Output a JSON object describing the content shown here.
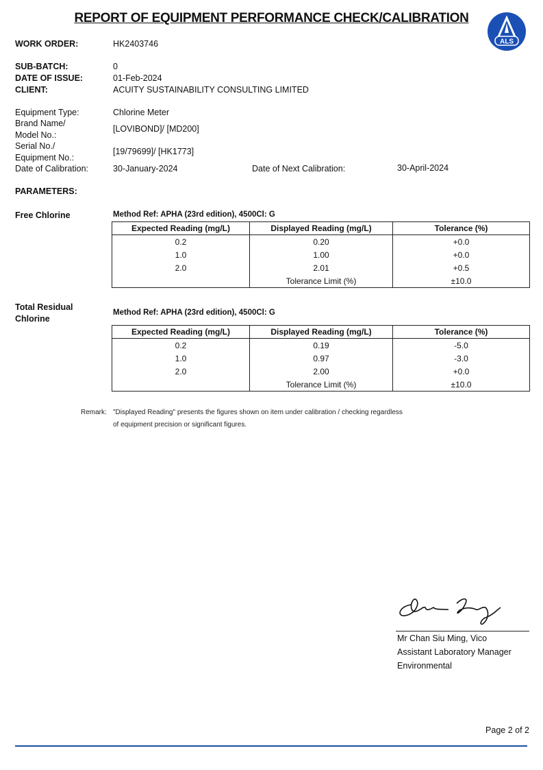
{
  "title": "REPORT OF EQUIPMENT PERFORMANCE CHECK/CALIBRATION",
  "logo": {
    "text": "ALS",
    "color": "#1a4fb5"
  },
  "header": {
    "work_order_label": "WORK ORDER:",
    "work_order": "HK2403746",
    "sub_batch_label": "SUB-BATCH:",
    "sub_batch": "0",
    "date_of_issue_label": "DATE OF ISSUE:",
    "date_of_issue": "01-Feb-2024",
    "client_label": "CLIENT:",
    "client": "ACUITY SUSTAINABILITY CONSULTING LIMITED"
  },
  "equipment": {
    "type_label": "Equipment Type:",
    "type": "Chlorine Meter",
    "brand_label_1": "Brand Name/",
    "brand_label_2": "Model No.:",
    "brand": "[LOVIBOND]/ [MD200]",
    "serial_label_1": "Serial No./",
    "serial_label_2": "Equipment No.:",
    "serial": "[19/79699]/ [HK1773]",
    "cal_date_label": "Date of Calibration:",
    "cal_date": "30-January-2024",
    "next_cal_label": "Date of Next Calibration:",
    "next_cal": "30-April-2024"
  },
  "parameters_label": "PARAMETERS:",
  "columns": [
    "Expected Reading (mg/L)",
    "Displayed Reading (mg/L)",
    "Tolerance (%)"
  ],
  "sections": [
    {
      "name": "Free Chlorine",
      "method": "Method Ref: APHA (23rd edition), 4500Cl: G",
      "rows": [
        [
          "0.2",
          "0.20",
          "+0.0"
        ],
        [
          "1.0",
          "1.00",
          "+0.0"
        ],
        [
          "2.0",
          "2.01",
          "+0.5"
        ]
      ],
      "limit_label": "Tolerance Limit (%)",
      "limit": "±10.0"
    },
    {
      "name_1": "Total Residual",
      "name_2": "Chlorine",
      "method": "Method Ref: APHA (23rd edition), 4500Cl: G",
      "rows": [
        [
          "0.2",
          "0.19",
          "-5.0"
        ],
        [
          "1.0",
          "0.97",
          "-3.0"
        ],
        [
          "2.0",
          "2.00",
          "+0.0"
        ]
      ],
      "limit_label": "Tolerance Limit (%)",
      "limit": "±10.0"
    }
  ],
  "remark": {
    "label": "Remark:",
    "line1": "\"Displayed Reading\" presents the figures shown on item under calibration / checking regardless",
    "line2": "of equipment precision or significant figures."
  },
  "signatory": {
    "name": "Mr Chan Siu Ming, Vico",
    "title": "Assistant Laboratory Manager",
    "dept": "Environmental"
  },
  "footer": {
    "page": "Page 2 of 2",
    "line_color": "#1f4e9c"
  }
}
